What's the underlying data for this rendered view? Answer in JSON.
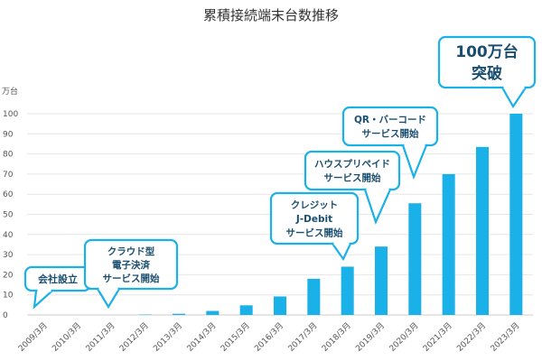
{
  "chart_data": {
    "type": "bar",
    "title": "累積接続端末台数推移",
    "ylabel": "万台",
    "ylim": [
      0,
      100
    ],
    "yticks": [
      0,
      10,
      20,
      30,
      40,
      50,
      60,
      70,
      80,
      90,
      100
    ],
    "categories": [
      "2009/3月",
      "2010/3月",
      "2011/3月",
      "2012/3月",
      "2013/3月",
      "2014/3月",
      "2015/3月",
      "2016/3月",
      "2017/3月",
      "2018/3月",
      "2019/3月",
      "2020/3月",
      "2021/3月",
      "2022/3月",
      "2023/3月"
    ],
    "values": [
      0,
      0,
      0,
      0.2,
      0.6,
      2,
      4.8,
      9.2,
      18,
      24,
      34,
      55.5,
      70,
      83.5,
      100
    ],
    "grid": true,
    "bar_color": "#1AB0E8",
    "annotations": [
      {
        "lines": [
          "会社設立"
        ],
        "category": "2009/3月"
      },
      {
        "lines": [
          "クラウド型",
          "電子決済",
          "サービス開始"
        ],
        "category": "2011/3月"
      },
      {
        "lines": [
          "クレジット",
          "J-Debit",
          "サービス開始"
        ],
        "category": "2018/3月"
      },
      {
        "lines": [
          "ハウスプリペイド",
          "サービス開始"
        ],
        "category": "2019/3月"
      },
      {
        "lines": [
          "QR・バーコード",
          "サービス開始"
        ],
        "category": "2020/3月"
      },
      {
        "lines": [
          "100万台",
          "突破"
        ],
        "category": "2023/3月"
      }
    ]
  }
}
